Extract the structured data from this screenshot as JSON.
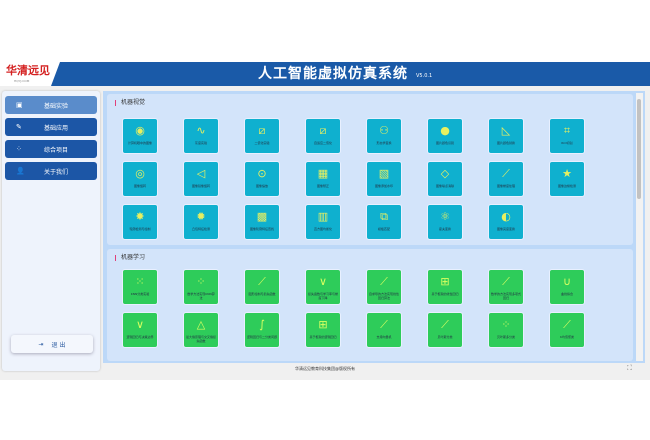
{
  "header": {
    "logo_text": "华清远见",
    "logo_sub": "HQYJ.COM",
    "title": "人工智能虚拟仿真系统",
    "version": "V5.0.1"
  },
  "sidebar": {
    "items": [
      {
        "label": "基础实验",
        "icon": "image-icon",
        "active": true
      },
      {
        "label": "基础应用",
        "icon": "edit-icon"
      },
      {
        "label": "综合项目",
        "icon": "grid-icon"
      },
      {
        "label": "关于我们",
        "icon": "user-icon"
      }
    ],
    "logout": "退 出"
  },
  "sections": [
    {
      "title": "机器视觉",
      "items": [
        "计算机眼中的图像",
        "灰度实验",
        "二值化实验",
        "自适应二值化",
        "形态学变换",
        "图片颜色识别",
        "图片颜色替换",
        "ROI切割",
        "图像旋转",
        "图像镜像旋转",
        "图像缩放",
        "图像矫正",
        "图像添加水印",
        "图像噪点消除",
        "图像梯度处理",
        "图像边缘检测",
        "轮廓检测与绘制",
        "凸包特征检测",
        "图像轮廓特征查找",
        "直方图均衡化",
        "模板匹配",
        "霍夫变换",
        "图像亮度变换"
      ]
    },
    {
      "title": "机器学习",
      "items": [
        "KNN分类实验",
        "数学方法实现KNN算法",
        "图形绘制与损失函数",
        "损失函数与学习率与梯度下降",
        "自求导的方法实现线性回归算法",
        "基于框架的线性回归",
        "数学的方法实现多项式回归",
        "曲线拟合",
        "逻辑回归与决策边界",
        "最大熵原理与交叉熵损失函数",
        "逻辑回归与二分类问题",
        "基于框架的逻辑回归",
        "支持向量机",
        "贝叶斯分类",
        "贝叶斯多分类",
        "K均值聚类"
      ]
    }
  ],
  "footer": "华清远见教育科技集团@版权所有",
  "colors": {
    "header": "#1a5aa8",
    "vision_tile": "#0fb0cf",
    "learning_tile": "#2ecc5a"
  }
}
